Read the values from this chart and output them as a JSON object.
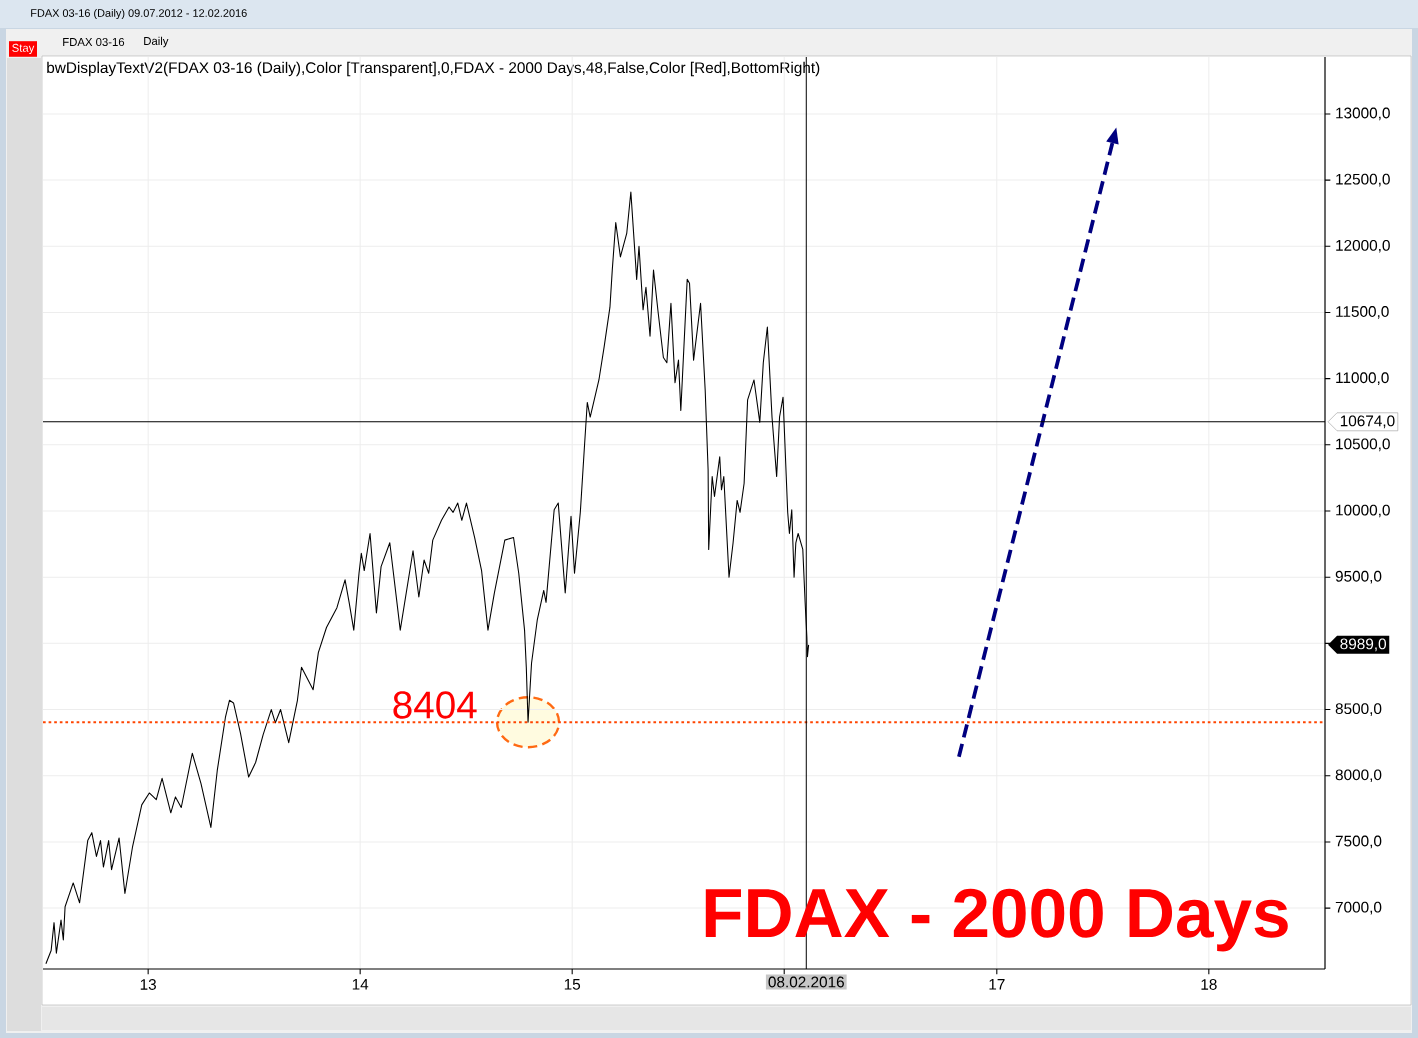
{
  "chart_data": {
    "type": "line",
    "title": "FDAX 03-16 (Daily) 09.07.2012 - 12.02.2016",
    "subtitle": "bwDisplayTextV2(FDAX 03-16 (Daily),Color [Transparent],0,FDAX - 2000 Days,48,False,Color [Red],BottomRight)",
    "annotations": [
      "FDAX - 2000 Days",
      "Stay",
      "FDAX 03-16",
      "Daily",
      "8989,0",
      {
        "text": "8404",
        "x": "2014-10-17",
        "y": 8404
      }
    ],
    "series": [
      {
        "color": "#000000",
        "x": [
          "2012-07-09",
          "2012-07-18",
          "2012-07-23",
          "2012-07-27",
          "2012-08-04",
          "2012-08-08",
          "2012-08-11",
          "2012-08-25",
          "2012-09-05",
          "2012-09-19",
          "2012-09-26",
          "2012-10-04",
          "2012-10-11",
          "2012-10-16",
          "2012-10-25",
          "2012-10-30",
          "2012-11-12",
          "2012-11-22",
          "2012-12-05",
          "2012-12-21",
          "2013-01-03",
          "2013-01-15",
          "2013-01-25",
          "2013-02-09",
          "2013-02-17",
          "2013-02-27",
          "2013-03-18",
          "2013-04-02",
          "2013-04-19",
          "2013-04-30",
          "2013-05-14",
          "2013-05-21",
          "2013-05-28",
          "2013-06-09",
          "2013-06-23",
          "2013-07-05",
          "2013-07-18",
          "2013-08-01",
          "2013-08-08",
          "2013-08-17",
          "2013-08-31",
          "2013-09-15",
          "2013-09-22",
          "2013-10-12",
          "2013-10-21",
          "2013-11-04",
          "2013-11-22",
          "2013-12-06",
          "2013-12-13",
          "2013-12-21",
          "2013-12-30",
          "2014-01-03",
          "2014-01-08",
          "2014-01-18",
          "2014-01-29",
          "2014-02-06",
          "2014-02-21",
          "2014-03-11",
          "2014-04-02",
          "2014-04-12",
          "2014-04-21",
          "2014-04-29",
          "2014-05-06",
          "2014-05-21",
          "2014-06-03",
          "2014-06-10",
          "2014-06-18",
          "2014-06-25",
          "2014-07-03",
          "2014-07-17",
          "2014-07-29",
          "2014-08-09",
          "2014-08-20",
          "2014-09-07",
          "2014-09-22",
          "2014-10-01",
          "2014-10-11",
          "2014-10-14",
          "2014-10-17",
          "2014-10-23",
          "2014-11-02",
          "2014-11-13",
          "2014-11-17",
          "2014-12-01",
          "2014-12-08",
          "2014-12-20",
          "2014-12-30",
          "2015-01-05",
          "2015-01-15",
          "2015-01-22",
          "2015-01-27",
          "2015-02-01",
          "2015-02-16",
          "2015-02-25",
          "2015-03-07",
          "2015-03-11",
          "2015-03-17",
          "2015-03-25",
          "2015-04-05",
          "2015-04-12",
          "2015-04-19",
          "2015-04-22",
          "2015-04-26",
          "2015-05-03",
          "2015-05-08",
          "2015-05-15",
          "2015-05-21",
          "2015-05-29",
          "2015-06-07",
          "2015-06-13",
          "2015-06-20",
          "2015-06-27",
          "2015-07-03",
          "2015-07-07",
          "2015-07-18",
          "2015-07-22",
          "2015-07-29",
          "2015-08-10",
          "2015-08-18",
          "2015-08-23",
          "2015-08-24",
          "2015-08-30",
          "2015-09-03",
          "2015-09-12",
          "2015-09-15",
          "2015-09-19",
          "2015-09-28",
          "2015-10-05",
          "2015-10-12",
          "2015-10-17",
          "2015-10-24",
          "2015-10-30",
          "2015-11-10",
          "2015-11-20",
          "2015-11-26",
          "2015-12-03",
          "2015-12-11",
          "2015-12-19",
          "2015-12-24",
          "2015-12-30",
          "2016-01-07",
          "2016-01-10",
          "2016-01-14",
          "2016-01-18",
          "2016-01-21",
          "2016-01-25",
          "2016-02-02",
          "2016-02-06",
          "2016-02-09",
          "2016-02-10",
          "2016-02-12"
        ],
        "values": [
          6580,
          6680,
          6890,
          6660,
          6910,
          6760,
          7010,
          7190,
          7040,
          7510,
          7570,
          7390,
          7510,
          7310,
          7510,
          7290,
          7530,
          7110,
          7460,
          7780,
          7870,
          7820,
          7980,
          7720,
          7840,
          7760,
          8170,
          7940,
          7610,
          8040,
          8440,
          8570,
          8550,
          8320,
          7990,
          8100,
          8310,
          8500,
          8400,
          8500,
          8250,
          8570,
          8820,
          8650,
          8930,
          9120,
          9270,
          9480,
          9310,
          9100,
          9530,
          9680,
          9550,
          9830,
          9230,
          9580,
          9760,
          9100,
          9700,
          9350,
          9630,
          9530,
          9780,
          9930,
          10030,
          9990,
          10060,
          9930,
          10060,
          9800,
          9550,
          9100,
          9380,
          9780,
          9800,
          9530,
          9100,
          8820,
          8404,
          8850,
          9180,
          9400,
          9310,
          10010,
          10060,
          9380,
          9960,
          9530,
          9990,
          10480,
          10820,
          10710,
          10990,
          11240,
          11540,
          11820,
          12180,
          11920,
          12100,
          12410,
          11950,
          11750,
          12000,
          11520,
          11690,
          11320,
          11820,
          11500,
          11160,
          11120,
          11570,
          10970,
          11140,
          10760,
          11750,
          11720,
          11140,
          11570,
          10910,
          10310,
          9710,
          10260,
          10110,
          10410,
          10160,
          10260,
          9500,
          9760,
          10080,
          9990,
          10210,
          10840,
          10990,
          10670,
          11120,
          11390,
          10710,
          10260,
          10710,
          10860,
          9990,
          9830,
          10010,
          9500,
          9760,
          9830,
          9710,
          9310,
          9050,
          8900,
          8989
        ]
      },
      {
        "type": "line",
        "color": "#000080",
        "line_style": "dashed",
        "x": [
          "2016-10-27",
          "2017-07-19"
        ],
        "values": [
          8130,
          12780
        ]
      }
    ],
    "xlim": [
      "2012-07-04",
      "2018-07-20"
    ],
    "ylim": [
      6540,
      13430
    ],
    "xticks": [
      {
        "value": "2013-01-01",
        "label": "13"
      },
      {
        "value": "2014-01-01",
        "label": "14"
      },
      {
        "value": "2015-01-01",
        "label": "15"
      },
      {
        "value": "2016-01-01",
        "label": null
      },
      {
        "value": "2017-01-01",
        "label": "17"
      },
      {
        "value": "2018-01-01",
        "label": "18"
      }
    ],
    "yticks": [
      {
        "value": 7000,
        "label": "7000,0"
      },
      {
        "value": 7500,
        "label": "7500,0"
      },
      {
        "value": 8000,
        "label": "8000,0"
      },
      {
        "value": 8500,
        "label": "8500,0"
      },
      {
        "value": 9000,
        "label": null
      },
      {
        "value": 9500,
        "label": "9500,0"
      },
      {
        "value": 10000,
        "label": "10000,0"
      },
      {
        "value": 10500,
        "label": "10500,0"
      },
      {
        "value": 11000,
        "label": "11000,0"
      },
      {
        "value": 11500,
        "label": "11500,0"
      },
      {
        "value": 12000,
        "label": "12000,0"
      },
      {
        "value": 12500,
        "label": "12500,0"
      },
      {
        "value": 13000,
        "label": "13000,0"
      }
    ],
    "grid": true,
    "ref_lines": [
      {
        "axis": "y",
        "value": 8404,
        "color": "#ff4500",
        "line_style": "dotted"
      },
      {
        "axis": "y",
        "value": 10674,
        "label": "10674,0",
        "color": "#000000"
      },
      {
        "axis": "x",
        "value": "2016-02-08",
        "label": "08.02.2016",
        "color": "#000000"
      }
    ]
  }
}
